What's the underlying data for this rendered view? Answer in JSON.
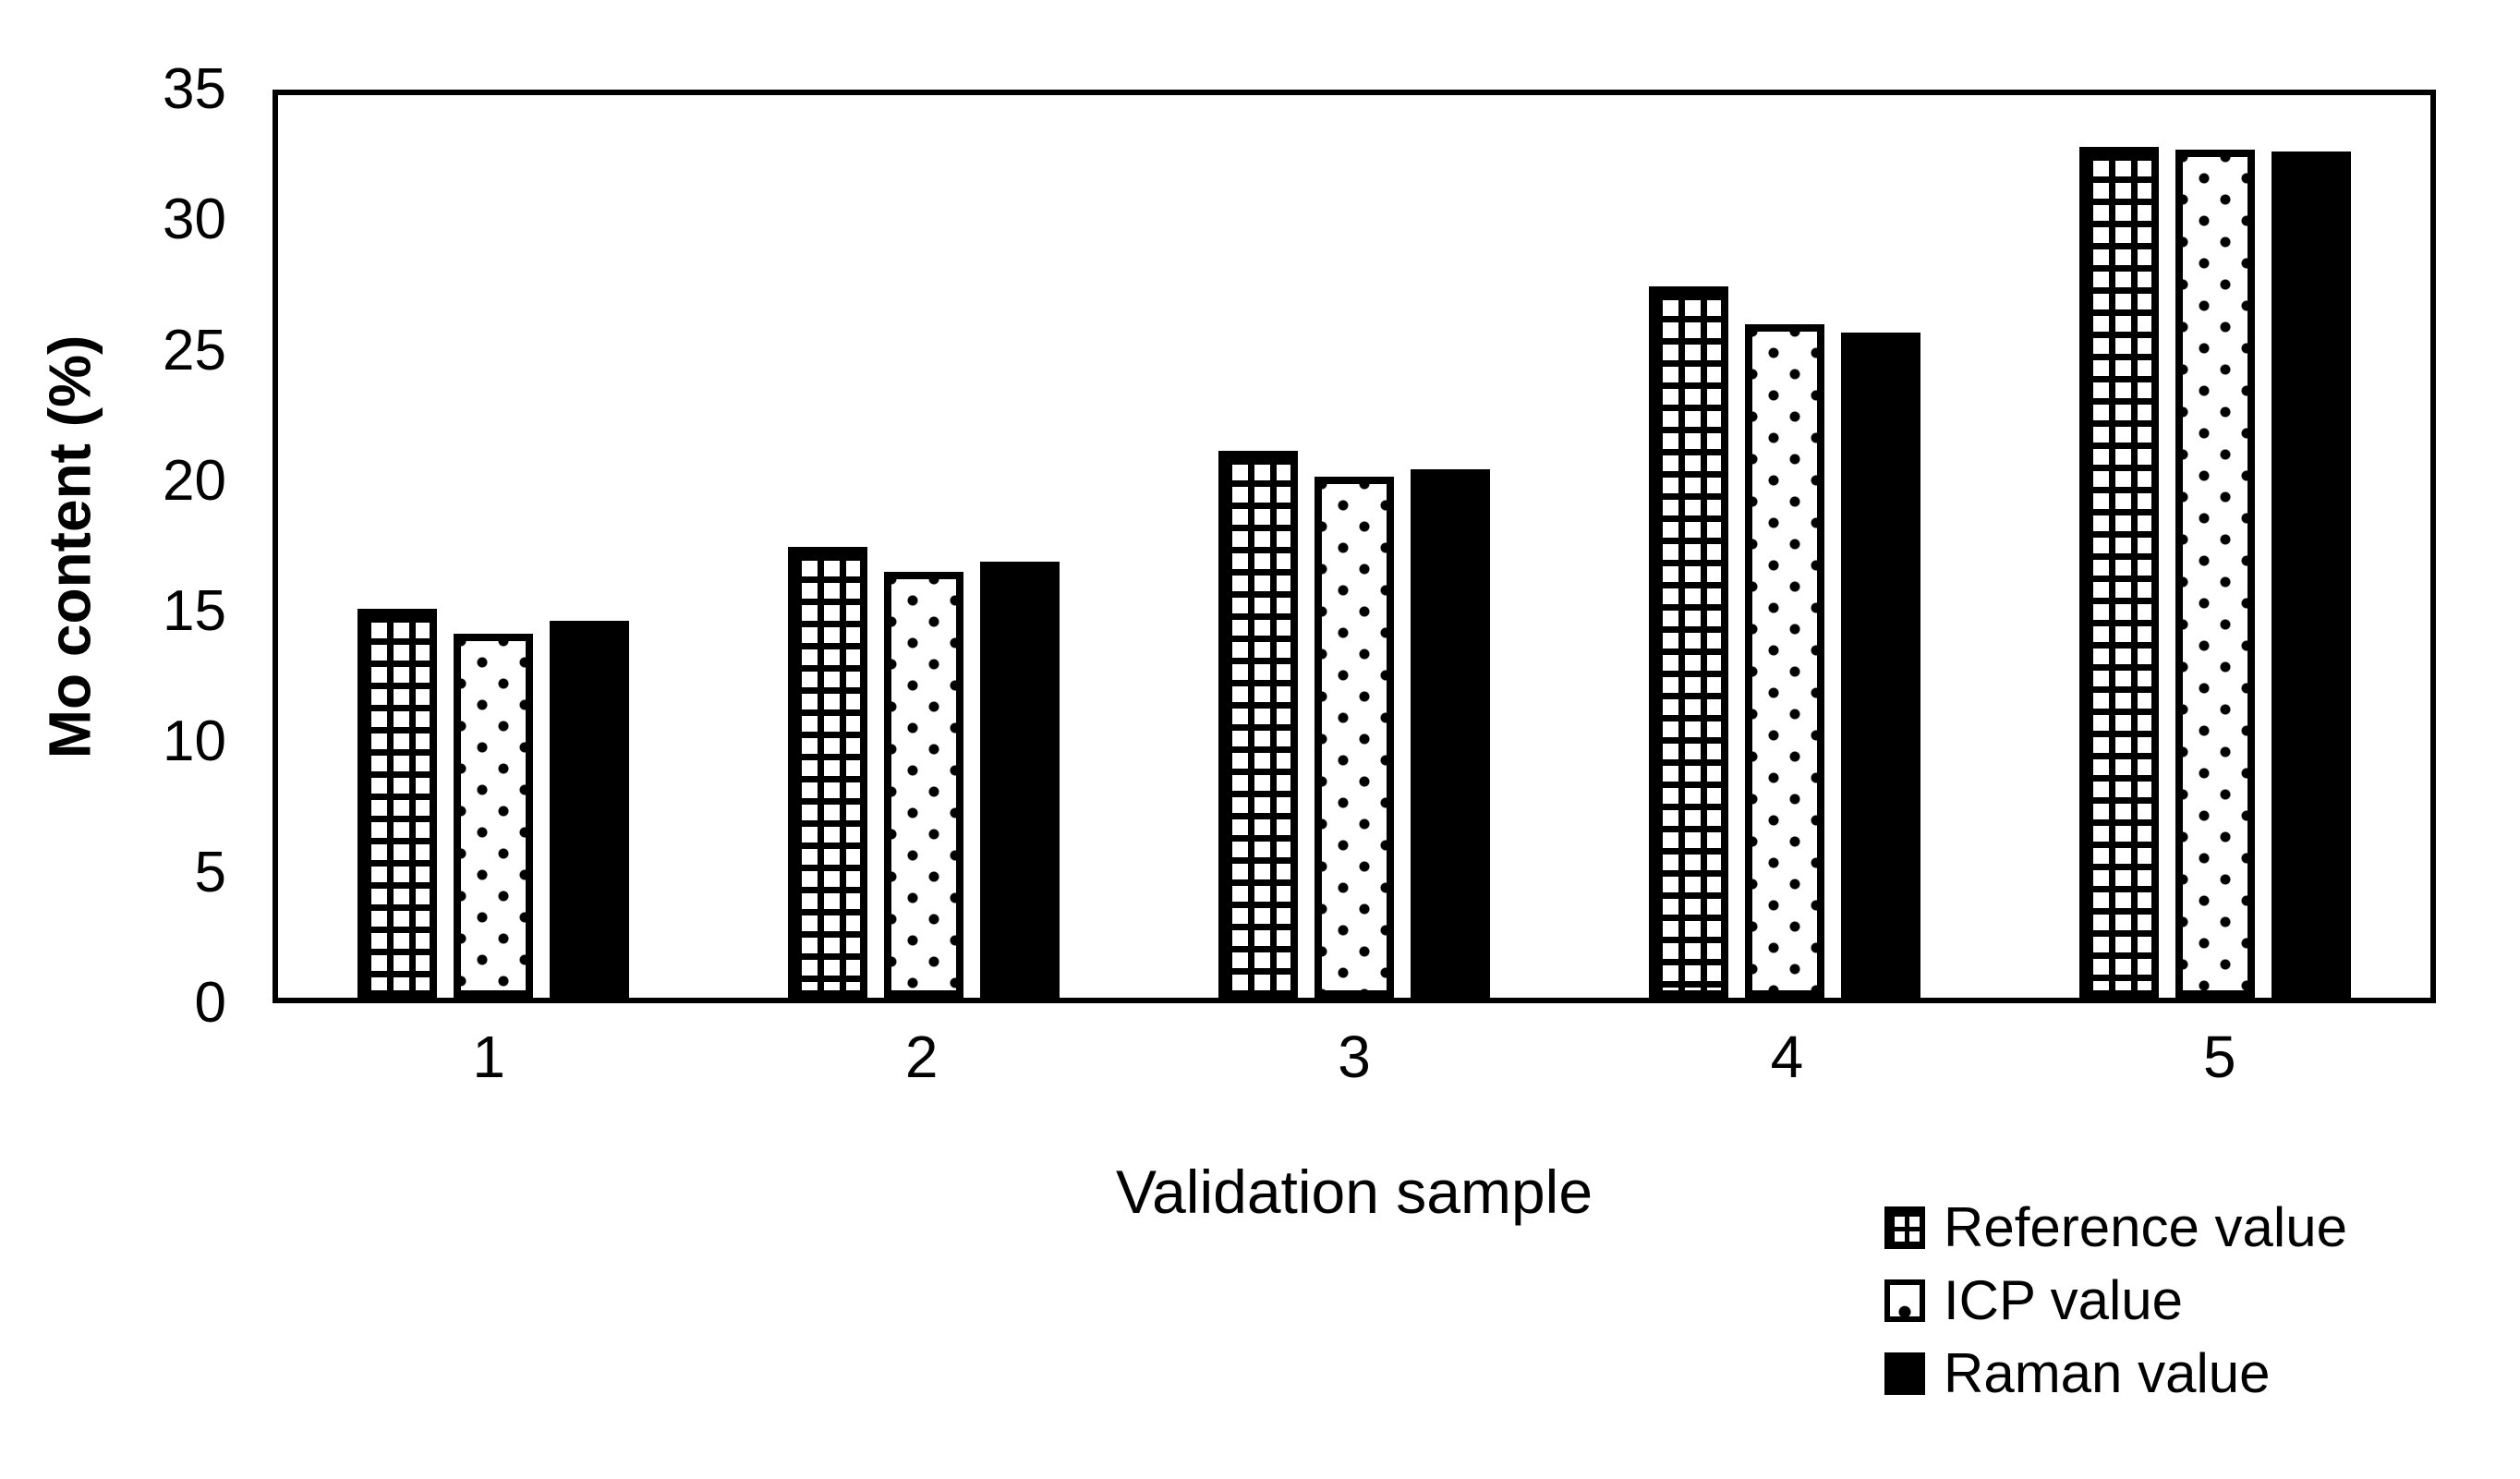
{
  "figure": {
    "background_color": "#ffffff",
    "ink_color": "#000000"
  },
  "chart_data": {
    "type": "bar",
    "title": "",
    "xlabel": "Validation sample",
    "ylabel": "Mo content (%)",
    "categories": [
      "1",
      "2",
      "3",
      "4",
      "5"
    ],
    "series": [
      {
        "name": "Reference value",
        "pattern": "grid",
        "values": [
          15.1,
          17.5,
          21.2,
          27.6,
          33.0
        ]
      },
      {
        "name": "ICP value",
        "pattern": "dots",
        "values": [
          14.1,
          16.5,
          20.2,
          26.1,
          32.9
        ]
      },
      {
        "name": "Raman value",
        "pattern": "solid",
        "values": [
          14.6,
          16.9,
          20.5,
          25.8,
          32.8
        ]
      }
    ],
    "ylim": [
      0,
      35
    ],
    "yticks": [
      0,
      5,
      10,
      15,
      20,
      25,
      30,
      35
    ],
    "grid": false,
    "frame": true,
    "legend_position": "bottom-right"
  }
}
